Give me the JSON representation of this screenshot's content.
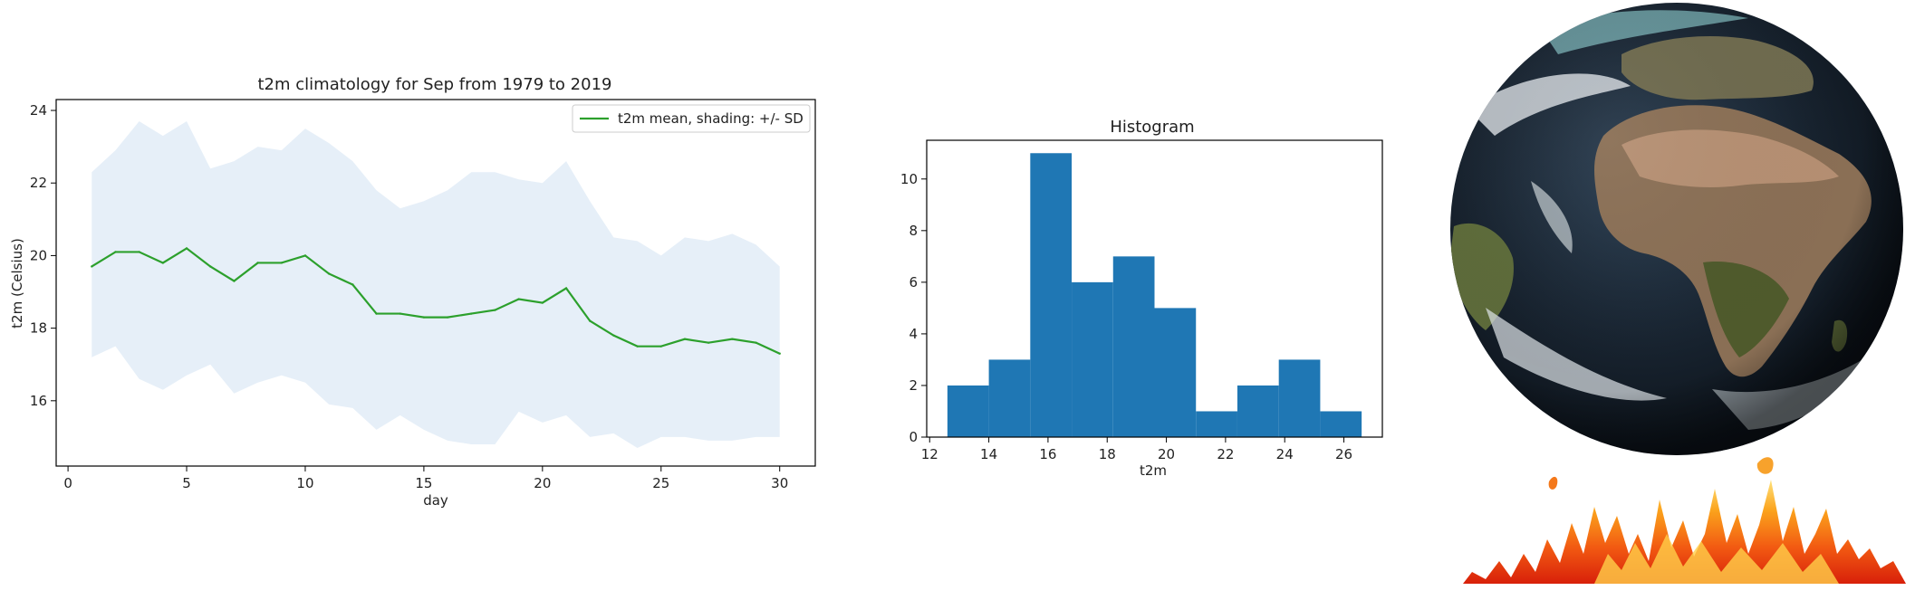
{
  "chart_data": [
    {
      "type": "line",
      "title": "t2m climatology for Sep from 1979 to 2019",
      "xlabel": "day",
      "ylabel": "t2m (Celsius)",
      "xlim": [
        -0.5,
        31.5
      ],
      "ylim": [
        14.2,
        24.3
      ],
      "xticks": [
        0,
        5,
        10,
        15,
        20,
        25,
        30
      ],
      "yticks": [
        16,
        18,
        20,
        22,
        24
      ],
      "legend": {
        "text": "t2m mean, shading: +/- SD",
        "placement": "top-right"
      },
      "series": [
        {
          "name": "t2m mean, shading: +/- SD",
          "color": "#2ca02c",
          "x": [
            1,
            2,
            3,
            4,
            5,
            6,
            7,
            8,
            9,
            10,
            11,
            12,
            13,
            14,
            15,
            16,
            17,
            18,
            19,
            20,
            21,
            22,
            23,
            24,
            25,
            26,
            27,
            28,
            29,
            30
          ],
          "values": [
            19.7,
            20.1,
            20.1,
            19.8,
            20.2,
            19.7,
            19.3,
            19.8,
            19.8,
            20.0,
            19.5,
            19.2,
            18.4,
            18.4,
            18.3,
            18.3,
            18.4,
            18.5,
            18.8,
            18.7,
            19.1,
            18.2,
            17.8,
            17.5,
            17.5,
            17.7,
            17.6,
            17.7,
            17.6,
            17.3
          ]
        }
      ],
      "band": {
        "color": "#e6eff8",
        "upper": [
          22.3,
          22.9,
          23.7,
          23.3,
          23.7,
          22.4,
          22.6,
          23.0,
          22.9,
          23.5,
          23.1,
          22.6,
          21.8,
          21.3,
          21.5,
          21.8,
          22.3,
          22.3,
          22.1,
          22.0,
          22.6,
          21.5,
          20.5,
          20.4,
          20.0,
          20.5,
          20.4,
          20.6,
          20.3,
          19.7
        ],
        "lower": [
          17.2,
          17.5,
          16.6,
          16.3,
          16.7,
          17.0,
          16.2,
          16.5,
          16.7,
          16.5,
          15.9,
          15.8,
          15.2,
          15.6,
          15.2,
          14.9,
          14.8,
          14.8,
          15.7,
          15.4,
          15.6,
          15.0,
          15.1,
          14.7,
          15.0,
          15.0,
          14.9,
          14.9,
          15.0,
          15.0
        ]
      }
    },
    {
      "type": "bar",
      "title": "Histogram",
      "xlabel": "t2m",
      "ylabel": "",
      "xlim": [
        11.9,
        27.3
      ],
      "ylim": [
        0,
        11.5
      ],
      "xticks": [
        12,
        14,
        16,
        18,
        20,
        22,
        24,
        26
      ],
      "yticks": [
        0,
        2,
        4,
        6,
        8,
        10
      ],
      "color": "#1f77b4",
      "bin_edges": [
        12.6,
        14.0,
        15.4,
        16.8,
        18.2,
        19.6,
        21.0,
        22.4,
        23.8,
        25.2,
        26.6
      ],
      "values": [
        2,
        3,
        11,
        6,
        7,
        5,
        1,
        2,
        3,
        1
      ]
    }
  ],
  "illustration": {
    "globe": "earth-globe-satellite-image",
    "fire": "flames-image"
  }
}
